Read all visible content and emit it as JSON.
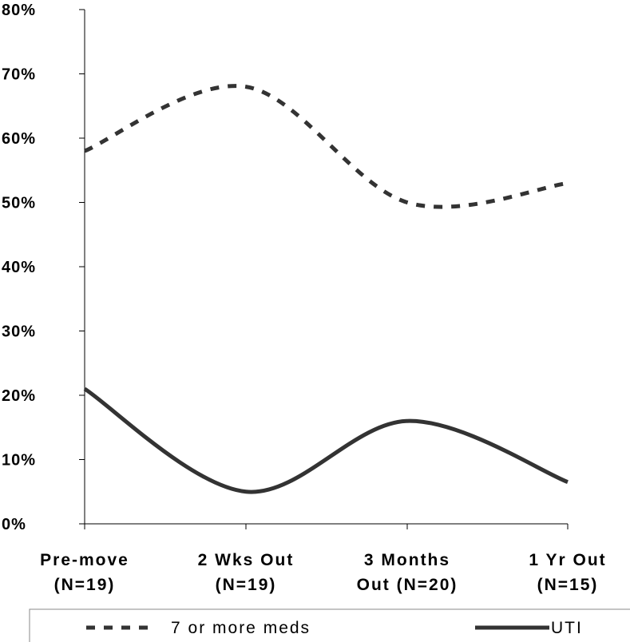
{
  "chart_data": {
    "type": "line",
    "categories": [
      [
        "Pre-move",
        "(N=19)"
      ],
      [
        "2 Wks Out",
        "(N=19)"
      ],
      [
        "3 Months",
        "Out (N=20)"
      ],
      [
        "1 Yr Out",
        "(N=15)"
      ]
    ],
    "y_ticks": [
      "0%",
      "10%",
      "20%",
      "30%",
      "40%",
      "50%",
      "60%",
      "70%",
      "80%"
    ],
    "ylim": [
      0,
      80
    ],
    "series": [
      {
        "name": "7 or more meds",
        "values": [
          58,
          68,
          50,
          53
        ],
        "style": "dashed",
        "color": "#333333"
      },
      {
        "name": "UTI",
        "values": [
          21,
          5,
          16,
          6.5
        ],
        "style": "solid",
        "color": "#333333"
      }
    ],
    "smooth": true,
    "grid": false,
    "legend_position": "bottom"
  }
}
